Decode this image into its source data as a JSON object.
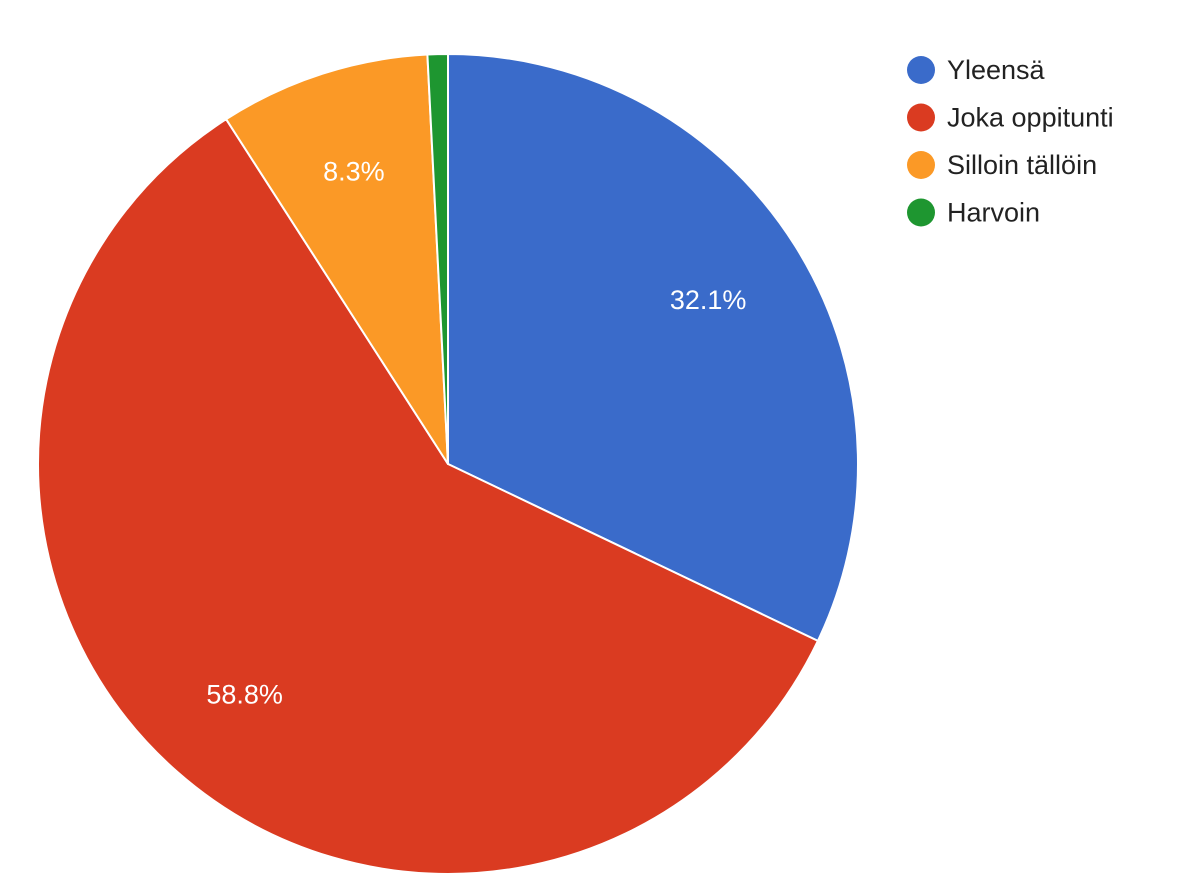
{
  "chart_data": {
    "type": "pie",
    "categories": [
      "Yleensä",
      "Joka oppitunti",
      "Silloin tällöin",
      "Harvoin"
    ],
    "values": [
      32.1,
      58.8,
      8.3,
      0.8
    ],
    "data_labels": [
      "32.1%",
      "58.8%",
      "8.3%",
      ""
    ],
    "colors": [
      "#3a6bca",
      "#da3b21",
      "#fb9926",
      "#1e9630"
    ],
    "legend_position": "top-right",
    "title": ""
  }
}
